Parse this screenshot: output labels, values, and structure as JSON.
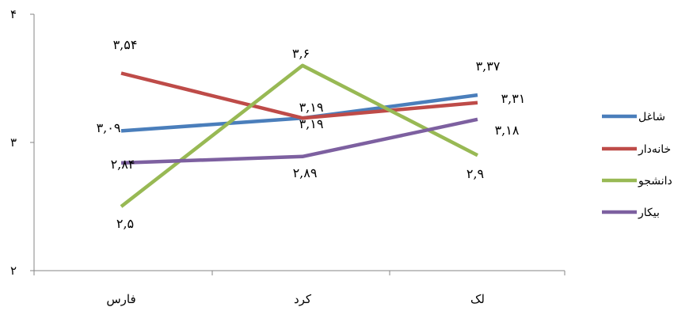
{
  "chart_data": {
    "type": "line",
    "categories": [
      "فارس",
      "کرد",
      "لک"
    ],
    "ylim": [
      2,
      4
    ],
    "yticks": [
      "۲",
      "۳",
      "۴"
    ],
    "grid": false,
    "legend_position": "right",
    "series": [
      {
        "name": "شاغل",
        "color": "#4a7ebb",
        "values": [
          3.09,
          3.19,
          3.37
        ],
        "labels": [
          "۳,۰۹",
          "۳,۱۹",
          "۳,۳۷"
        ]
      },
      {
        "name": "خانه‌دار",
        "color": "#be4b48",
        "values": [
          3.54,
          3.19,
          3.31
        ],
        "labels": [
          "۳,۵۴",
          "۳,۱۹",
          "۳,۳۱"
        ]
      },
      {
        "name": "دانشجو",
        "color": "#98b954",
        "values": [
          2.5,
          3.6,
          2.9
        ],
        "labels": [
          "۲,۵",
          "۳,۶",
          "۲,۹"
        ]
      },
      {
        "name": "بیکار",
        "color": "#7d60a0",
        "values": [
          2.84,
          2.89,
          3.18
        ],
        "labels": [
          "۲,۸۴",
          "۲,۸۹",
          "۳,۱۸"
        ]
      }
    ]
  }
}
